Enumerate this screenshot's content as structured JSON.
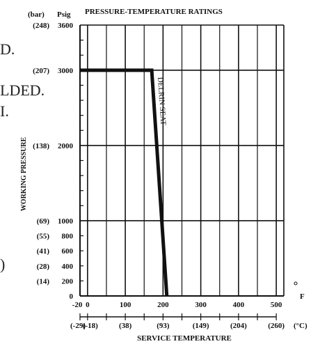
{
  "margin_fragments": [
    "D.",
    "LDED.",
    "I.",
    ")"
  ],
  "chart_data": {
    "type": "line",
    "title": "PRESSURE-TEMPERATURE RATINGS",
    "xlabel": "SERVICE TEMPERATURE",
    "ylabel": "WORKING PRESSURE",
    "x_unit_primary": "F",
    "x_unit_secondary": "(°C)",
    "y_unit_secondary": "(bar)",
    "y_unit_primary": "Psig",
    "xlim": [
      -20,
      520
    ],
    "ylim": [
      0,
      3600
    ],
    "grid": true,
    "x_ticks_f": [
      {
        "value": -20,
        "label": "-20"
      },
      {
        "value": 0,
        "label": "0"
      },
      {
        "value": 100,
        "label": "100"
      },
      {
        "value": 200,
        "label": "200"
      },
      {
        "value": 300,
        "label": "300"
      },
      {
        "value": 400,
        "label": "400"
      },
      {
        "value": 500,
        "label": "500"
      }
    ],
    "x_ticks_c": [
      {
        "value": -20,
        "label": "(-29)"
      },
      {
        "value": 0,
        "label": "(-18)"
      },
      {
        "value": 100,
        "label": "(38)"
      },
      {
        "value": 200,
        "label": "(93)"
      },
      {
        "value": 300,
        "label": "(149)"
      },
      {
        "value": 400,
        "label": "(204)"
      },
      {
        "value": 500,
        "label": "(260)"
      }
    ],
    "y_ticks": [
      {
        "value": 0,
        "psig": "0",
        "bar": ""
      },
      {
        "value": 200,
        "psig": "200",
        "bar": "(14)"
      },
      {
        "value": 400,
        "psig": "400",
        "bar": "(28)"
      },
      {
        "value": 600,
        "psig": "600",
        "bar": "(41)"
      },
      {
        "value": 800,
        "psig": "800",
        "bar": "(55)"
      },
      {
        "value": 1000,
        "psig": "1000",
        "bar": "(69)"
      },
      {
        "value": 2000,
        "psig": "2000",
        "bar": "(138)"
      },
      {
        "value": 3000,
        "psig": "3000",
        "bar": "(207)"
      },
      {
        "value": 3600,
        "psig": "3600",
        "bar": "(248)"
      }
    ],
    "series": [
      {
        "name": "DELRIN SEAT",
        "color": "#111111",
        "points": [
          {
            "x": -20,
            "y": 3000
          },
          {
            "x": 170,
            "y": 3000
          },
          {
            "x": 210,
            "y": 0
          }
        ]
      }
    ]
  }
}
